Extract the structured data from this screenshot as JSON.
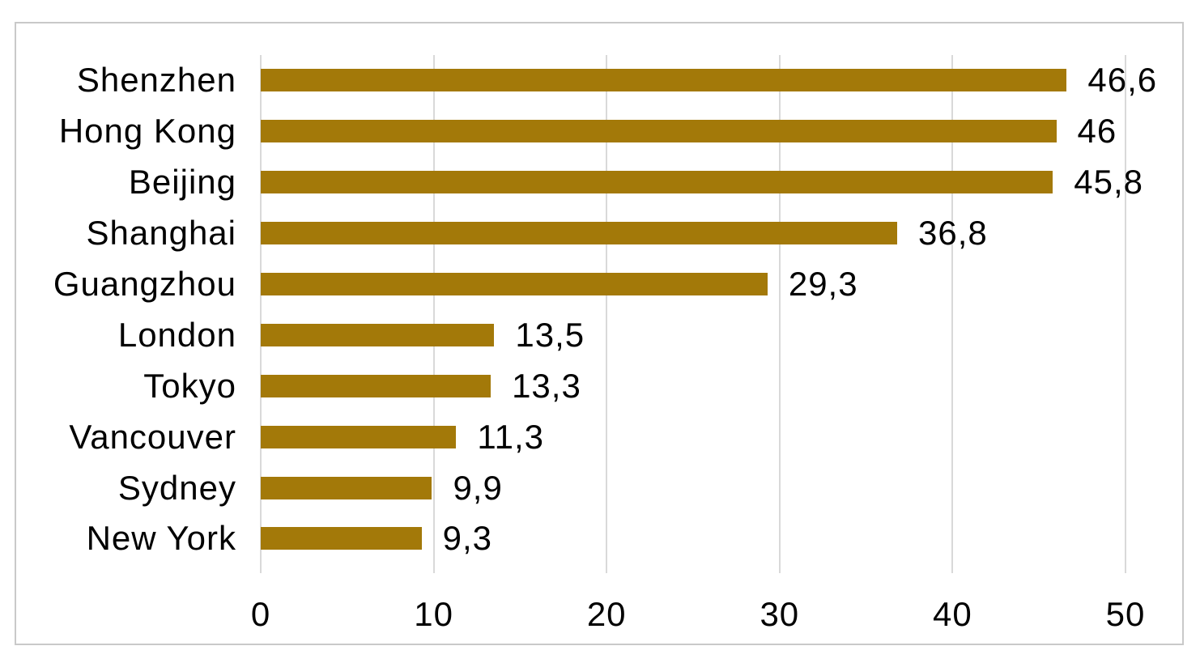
{
  "chart_data": {
    "type": "bar",
    "orientation": "horizontal",
    "title": "",
    "xlabel": "",
    "ylabel": "",
    "categories": [
      "Shenzhen",
      "Hong Kong",
      "Beijing",
      "Shanghai",
      "Guangzhou",
      "London",
      "Tokyo",
      "Vancouver",
      "Sydney",
      "New York"
    ],
    "values": [
      46.6,
      46,
      45.8,
      36.8,
      29.3,
      13.5,
      13.3,
      11.3,
      9.9,
      9.3
    ],
    "value_labels": [
      "46,6",
      "46",
      "45,8",
      "36,8",
      "29,3",
      "13,5",
      "13,3",
      "11,3",
      "9,9",
      "9,3"
    ],
    "xlim": [
      0,
      50
    ],
    "x_ticks": [
      "0",
      "10",
      "20",
      "30",
      "40",
      "50"
    ],
    "grid": "vertical",
    "legend": "none",
    "colors": {
      "bar": "#A37909",
      "gridline": "#D9D9D9",
      "frame_border": "#C9C9C9",
      "text": "#000000",
      "background": "#FFFFFF"
    }
  }
}
